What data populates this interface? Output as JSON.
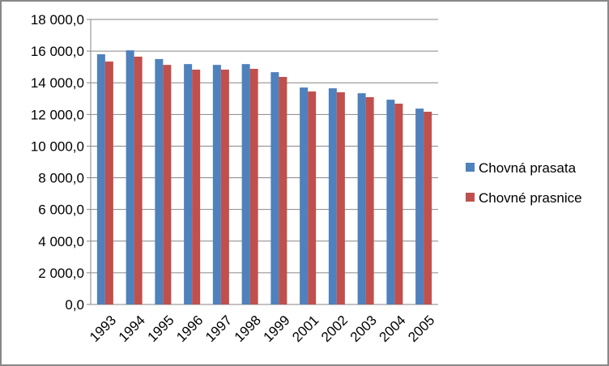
{
  "chart_data": {
    "type": "bar",
    "categories": [
      "1993",
      "1994",
      "1995",
      "1996",
      "1997",
      "1998",
      "1999",
      "2001",
      "2002",
      "2003",
      "2004",
      "2005"
    ],
    "series": [
      {
        "name": "Chovná prasata",
        "color": "#4f81bd",
        "values": [
          15800,
          16050,
          15500,
          15180,
          15130,
          15180,
          14670,
          13700,
          13650,
          13340,
          12930,
          12370
        ]
      },
      {
        "name": "Chovné prasnice",
        "color": "#c0504d",
        "values": [
          15340,
          15650,
          15130,
          14830,
          14830,
          14880,
          14370,
          13450,
          13400,
          13090,
          12680,
          12170
        ]
      }
    ],
    "ylim": [
      0,
      18000
    ],
    "yticks": [
      {
        "value": 0,
        "label": "0,0"
      },
      {
        "value": 2000,
        "label": "2 000,0"
      },
      {
        "value": 4000,
        "label": "4 000,0"
      },
      {
        "value": 6000,
        "label": "6 000,0"
      },
      {
        "value": 8000,
        "label": "8 000,0"
      },
      {
        "value": 10000,
        "label": "10 000,0"
      },
      {
        "value": 12000,
        "label": "12 000,0"
      },
      {
        "value": 14000,
        "label": "14 000,0"
      },
      {
        "value": 16000,
        "label": "16 000,0"
      },
      {
        "value": 18000,
        "label": "18 000,0"
      }
    ],
    "grid": true,
    "legend": "right"
  }
}
